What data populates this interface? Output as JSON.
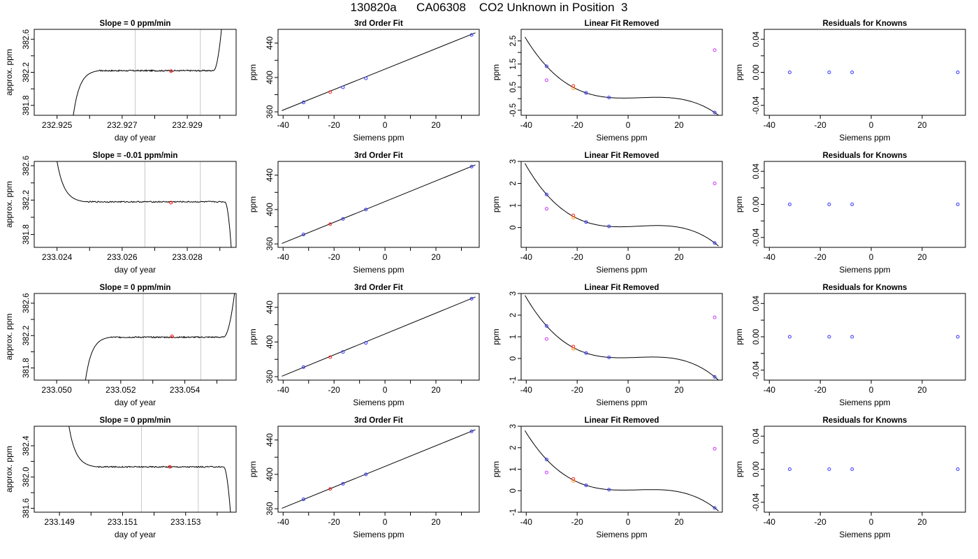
{
  "page": {
    "title": "130820a      CA06308    CO2 Unknown in Position  3"
  },
  "chart_data": [
    {
      "type": "line",
      "title": "Slope =  0  ppm/min",
      "xlabel": "day of year",
      "ylabel": "approx. ppm",
      "xlim": [
        232.9243,
        232.9305
      ],
      "ylim": [
        381.68,
        382.72
      ],
      "xticks": [
        232.925,
        232.926,
        232.927,
        232.928,
        232.929,
        232.93
      ],
      "xtick_labels": [
        "232.925",
        "",
        "232.927",
        "",
        "232.929",
        ""
      ],
      "yticks": [
        381.8,
        382.0,
        382.2,
        382.4,
        382.6
      ],
      "ytick_labels": [
        "381.8",
        "",
        "382.2",
        "",
        "382.6"
      ],
      "vlines": [
        232.9274,
        232.9294
      ],
      "point": [
        232.9285,
        382.215
      ],
      "shape": "rise-flat-rise",
      "trace": {
        "x_start": 232.9255,
        "x_plateau": 232.9263,
        "x_flat_end": 232.9298,
        "x_end": 232.93005,
        "y_low": 381.68,
        "y_plateau": 382.22,
        "y_end": 382.72,
        "noise": 0.008
      }
    },
    {
      "type": "scatter",
      "title": "3rd Order Fit",
      "xlabel": "Siemens ppm",
      "ylabel": "ppm",
      "xlim": [
        -42,
        37
      ],
      "ylim": [
        356,
        456
      ],
      "xticks": [
        -40,
        -30,
        -20,
        -10,
        0,
        10,
        20,
        30
      ],
      "xtick_labels": [
        "-40",
        "",
        "-20",
        "",
        "0",
        "",
        "20",
        ""
      ],
      "yticks": [
        360,
        380,
        400,
        420,
        440
      ],
      "ytick_labels": [
        "360",
        "",
        "400",
        "",
        "440"
      ],
      "line": [
        [
          -40.5,
          361.5
        ],
        [
          35.5,
          452
        ]
      ],
      "blue": {
        "x": [
          -32,
          -16.5,
          -7.5,
          34
        ],
        "y": [
          371,
          388.5,
          399,
          449.5
        ]
      },
      "red": {
        "x": [
          -21.5
        ],
        "y": [
          383
        ]
      }
    },
    {
      "type": "scatter",
      "title": "Linear Fit Removed",
      "xlabel": "Siemens ppm",
      "ylabel": "ppm",
      "xlim": [
        -42,
        37
      ],
      "ylim": [
        -0.72,
        3.0
      ],
      "xticks": [
        -40,
        -20,
        0,
        20
      ],
      "xtick_labels": [
        "-40",
        "-20",
        "0",
        "20"
      ],
      "yticks": [
        -0.5,
        0,
        0.5,
        1,
        1.5,
        2,
        2.5
      ],
      "ytick_labels": [
        "-0.5",
        "",
        "0.5",
        "",
        "1.5",
        "",
        "2.5"
      ],
      "cubic": {
        "a": 0.0,
        "b": -7.2e-05,
        "c": -5.4e-06,
        "d": 5.4e-07
      },
      "blue": {
        "x": [
          -32,
          -16.5,
          -7.5,
          34
        ],
        "y": [
          1.4,
          0.25,
          0.05,
          -0.6
        ]
      },
      "red": {
        "x": [
          -21.5
        ],
        "y": [
          0.55
        ]
      },
      "orange": {
        "x": [
          -21.5
        ],
        "y": [
          0.45
        ]
      },
      "magenta": {
        "x": [
          -32,
          34
        ],
        "y": [
          0.8,
          2.1
        ]
      }
    },
    {
      "type": "scatter",
      "title": "Residuals for Knowns",
      "xlabel": "Siemens ppm",
      "ylabel": "ppm",
      "xlim": [
        -42,
        37
      ],
      "ylim": [
        -0.052,
        0.052
      ],
      "xticks": [
        -40,
        -20,
        0,
        20
      ],
      "xtick_labels": [
        "-40",
        "-20",
        "0",
        "20"
      ],
      "yticks": [
        -0.04,
        -0.02,
        0,
        0.02,
        0.04
      ],
      "ytick_labels": [
        "-0.04",
        "",
        "0.00",
        "",
        "0.04"
      ],
      "blue": {
        "x": [
          -32,
          -16.5,
          -7.5,
          34
        ],
        "y": [
          0,
          0,
          0,
          0
        ]
      }
    },
    {
      "type": "line",
      "title": "Slope =  -0.01  ppm/min",
      "xlabel": "day of year",
      "ylabel": "approx. ppm",
      "xlim": [
        233.0233,
        233.0295
      ],
      "ylim": [
        381.65,
        382.65
      ],
      "xticks": [
        233.024,
        233.025,
        233.026,
        233.027,
        233.028,
        233.029
      ],
      "xtick_labels": [
        "233.024",
        "",
        "233.026",
        "",
        "233.028",
        ""
      ],
      "yticks": [
        381.8,
        382.0,
        382.2,
        382.4,
        382.6
      ],
      "ytick_labels": [
        "381.8",
        "",
        "382.2",
        "",
        "382.6"
      ],
      "vlines": [
        233.0267,
        233.0284
      ],
      "point": [
        233.0275,
        382.17
      ],
      "shape": "fall-flat-fall",
      "trace": {
        "x_start": 233.024,
        "x_plateau": 233.0249,
        "x_flat_end": 233.02915,
        "x_end": 233.02935,
        "y_start": 382.65,
        "y_plateau": 382.18,
        "y_end": 381.65,
        "noise": 0.007
      }
    },
    {
      "type": "scatter",
      "title": "3rd Order Fit",
      "xlabel": "Siemens ppm",
      "ylabel": "ppm",
      "xlim": [
        -42,
        37
      ],
      "ylim": [
        356,
        456
      ],
      "xticks": [
        -40,
        -30,
        -20,
        -10,
        0,
        10,
        20,
        30
      ],
      "xtick_labels": [
        "-40",
        "",
        "-20",
        "",
        "0",
        "",
        "20",
        ""
      ],
      "yticks": [
        360,
        380,
        400,
        420,
        440
      ],
      "ytick_labels": [
        "360",
        "",
        "400",
        "",
        "440"
      ],
      "line": [
        [
          -40.5,
          360.5
        ],
        [
          35.5,
          452
        ]
      ],
      "blue": {
        "x": [
          -32,
          -16.5,
          -7.5,
          34
        ],
        "y": [
          371,
          389,
          400,
          450
        ]
      },
      "red": {
        "x": [
          -21.5
        ],
        "y": [
          383
        ]
      }
    },
    {
      "type": "scatter",
      "title": "Linear Fit Removed",
      "xlabel": "Siemens ppm",
      "ylabel": "ppm",
      "xlim": [
        -42,
        37
      ],
      "ylim": [
        -0.9,
        3.0
      ],
      "xticks": [
        -40,
        -20,
        0,
        20
      ],
      "xtick_labels": [
        "-40",
        "-20",
        "0",
        "20"
      ],
      "yticks": [
        0,
        1,
        2,
        3
      ],
      "ytick_labels": [
        "0",
        "1",
        "2",
        "3"
      ],
      "cubic": {
        "a": 0.0,
        "b": -7.8e-05,
        "c": -5.8e-06,
        "d": 5.8e-07
      },
      "blue": {
        "x": [
          -32,
          -16.5,
          -7.5,
          34
        ],
        "y": [
          1.5,
          0.25,
          0.05,
          -0.7
        ]
      },
      "red": {
        "x": [
          -21.5
        ],
        "y": [
          0.55
        ]
      },
      "orange": {
        "x": [
          -21.5
        ],
        "y": [
          0.45
        ]
      },
      "magenta": {
        "x": [
          -32,
          34
        ],
        "y": [
          0.85,
          2.0
        ]
      }
    },
    {
      "type": "scatter",
      "title": "Residuals for Knowns",
      "xlabel": "Siemens ppm",
      "ylabel": "ppm",
      "xlim": [
        -42,
        37
      ],
      "ylim": [
        -0.052,
        0.052
      ],
      "xticks": [
        -40,
        -20,
        0,
        20
      ],
      "xtick_labels": [
        "-40",
        "-20",
        "0",
        "20"
      ],
      "yticks": [
        -0.04,
        -0.02,
        0,
        0.02,
        0.04
      ],
      "ytick_labels": [
        "-0.04",
        "",
        "0.00",
        "",
        "0.04"
      ],
      "blue": {
        "x": [
          -32,
          -16.5,
          -7.5,
          34
        ],
        "y": [
          0,
          0,
          0,
          0
        ]
      }
    },
    {
      "type": "line",
      "title": "Slope =  0  ppm/min",
      "xlabel": "day of year",
      "ylabel": "approx. ppm",
      "xlim": [
        233.0493,
        233.0556
      ],
      "ylim": [
        381.65,
        382.72
      ],
      "xticks": [
        233.05,
        233.051,
        233.052,
        233.053,
        233.054,
        233.055
      ],
      "xtick_labels": [
        "233.050",
        "",
        "233.052",
        "",
        "233.054",
        ""
      ],
      "yticks": [
        381.8,
        382.0,
        382.2,
        382.4,
        382.6
      ],
      "ytick_labels": [
        "381.8",
        "",
        "382.2",
        "",
        "382.6"
      ],
      "vlines": [
        233.0527,
        233.0545
      ],
      "point": [
        233.0536,
        382.19
      ],
      "shape": "rise-flat-rise",
      "trace": {
        "x_start": 233.0509,
        "x_plateau": 233.0517,
        "x_flat_end": 233.0552,
        "x_end": 233.05555,
        "y_low": 381.65,
        "y_plateau": 382.18,
        "y_end": 382.72,
        "noise": 0.008
      }
    },
    {
      "type": "scatter",
      "title": "3rd Order Fit",
      "xlabel": "Siemens ppm",
      "ylabel": "ppm",
      "xlim": [
        -42,
        37
      ],
      "ylim": [
        356,
        456
      ],
      "xticks": [
        -40,
        -30,
        -20,
        -10,
        0,
        10,
        20,
        30
      ],
      "xtick_labels": [
        "-40",
        "",
        "-20",
        "",
        "0",
        "",
        "20",
        ""
      ],
      "yticks": [
        360,
        380,
        400,
        420,
        440
      ],
      "ytick_labels": [
        "360",
        "",
        "400",
        "",
        "440"
      ],
      "line": [
        [
          -40.5,
          360.5
        ],
        [
          35.5,
          452
        ]
      ],
      "blue": {
        "x": [
          -32,
          -16.5,
          -7.5,
          34
        ],
        "y": [
          371,
          388.5,
          399,
          450
        ]
      },
      "red": {
        "x": [
          -21.5
        ],
        "y": [
          382.5
        ]
      }
    },
    {
      "type": "scatter",
      "title": "Linear Fit Removed",
      "xlabel": "Siemens ppm",
      "ylabel": "ppm",
      "xlim": [
        -42,
        37
      ],
      "ylim": [
        -1.0,
        3.0
      ],
      "xticks": [
        -40,
        -20,
        0,
        20
      ],
      "xtick_labels": [
        "-40",
        "-20",
        "0",
        "20"
      ],
      "yticks": [
        -1,
        0,
        1,
        2,
        3
      ],
      "ytick_labels": [
        "-1",
        "0",
        "1",
        "2",
        "3"
      ],
      "cubic": {
        "a": 0.0,
        "b": -8.5e-05,
        "c": -6.2e-06,
        "d": 6.2e-07
      },
      "blue": {
        "x": [
          -32,
          -16.5,
          -7.5,
          34
        ],
        "y": [
          1.5,
          0.25,
          0.05,
          -0.85
        ]
      },
      "red": {
        "x": [
          -21.5
        ],
        "y": [
          0.55
        ]
      },
      "orange": {
        "x": [
          -21.5
        ],
        "y": [
          0.45
        ]
      },
      "magenta": {
        "x": [
          -32,
          34
        ],
        "y": [
          0.9,
          1.9
        ]
      }
    },
    {
      "type": "scatter",
      "title": "Residuals for Knowns",
      "xlabel": "Siemens ppm",
      "ylabel": "ppm",
      "xlim": [
        -42,
        37
      ],
      "ylim": [
        -0.052,
        0.052
      ],
      "xticks": [
        -40,
        -20,
        0,
        20
      ],
      "xtick_labels": [
        "-40",
        "-20",
        "0",
        "20"
      ],
      "yticks": [
        -0.04,
        -0.02,
        0,
        0.02,
        0.04
      ],
      "ytick_labels": [
        "-0.04",
        "",
        "0.00",
        "",
        "0.04"
      ],
      "blue": {
        "x": [
          -32,
          -16.5,
          -7.5,
          34
        ],
        "y": [
          0,
          0,
          0,
          0
        ]
      }
    },
    {
      "type": "line",
      "title": "Slope =  0  ppm/min",
      "xlabel": "day of year",
      "ylabel": "approx. ppm",
      "xlim": [
        233.1482,
        233.1546
      ],
      "ylim": [
        381.55,
        382.65
      ],
      "xticks": [
        233.149,
        233.15,
        233.151,
        233.152,
        233.153,
        233.154
      ],
      "xtick_labels": [
        "233.149",
        "",
        "233.151",
        "",
        "233.153",
        ""
      ],
      "yticks": [
        381.6,
        381.8,
        382.0,
        382.2,
        382.4
      ],
      "ytick_labels": [
        "381.6",
        "",
        "382.0",
        "",
        "382.4"
      ],
      "vlines": [
        233.1516,
        233.1534
      ],
      "point": [
        233.1525,
        382.13
      ],
      "shape": "fall-flat-fall",
      "trace": {
        "x_start": 233.1493,
        "x_plateau": 233.1502,
        "x_flat_end": 233.1542,
        "x_end": 233.15442,
        "y_start": 382.65,
        "y_plateau": 382.13,
        "y_end": 381.55,
        "noise": 0.008
      }
    },
    {
      "type": "scatter",
      "title": "3rd Order Fit",
      "xlabel": "Siemens ppm",
      "ylabel": "ppm",
      "xlim": [
        -42,
        37
      ],
      "ylim": [
        356,
        456
      ],
      "xticks": [
        -40,
        -30,
        -20,
        -10,
        0,
        10,
        20,
        30
      ],
      "xtick_labels": [
        "-40",
        "",
        "-20",
        "",
        "0",
        "",
        "20",
        ""
      ],
      "yticks": [
        360,
        380,
        400,
        420,
        440
      ],
      "ytick_labels": [
        "360",
        "",
        "400",
        "",
        "440"
      ],
      "line": [
        [
          -40.5,
          360.5
        ],
        [
          35.5,
          452
        ]
      ],
      "blue": {
        "x": [
          -32,
          -16.5,
          -7.5,
          34
        ],
        "y": [
          371,
          389,
          400,
          450
        ]
      },
      "red": {
        "x": [
          -21.5
        ],
        "y": [
          383
        ]
      }
    },
    {
      "type": "scatter",
      "title": "Linear Fit Removed",
      "xlabel": "Siemens ppm",
      "ylabel": "ppm",
      "xlim": [
        -42,
        37
      ],
      "ylim": [
        -1.0,
        3.0
      ],
      "xticks": [
        -40,
        -20,
        0,
        20
      ],
      "xtick_labels": [
        "-40",
        "-20",
        "0",
        "20"
      ],
      "yticks": [
        -1,
        0,
        1,
        2,
        3
      ],
      "ytick_labels": [
        "-1",
        "0",
        "1",
        "2",
        "3"
      ],
      "cubic": {
        "a": 0.0,
        "b": -8e-05,
        "c": -6e-06,
        "d": 6e-07
      },
      "blue": {
        "x": [
          -32,
          -16.5,
          -7.5,
          34
        ],
        "y": [
          1.45,
          0.25,
          0.05,
          -0.8
        ]
      },
      "red": {
        "x": [
          -21.5
        ],
        "y": [
          0.55
        ]
      },
      "orange": {
        "x": [
          -21.5
        ],
        "y": [
          0.45
        ]
      },
      "magenta": {
        "x": [
          -32,
          34
        ],
        "y": [
          0.85,
          1.95
        ]
      }
    },
    {
      "type": "scatter",
      "title": "Residuals for Knowns",
      "xlabel": "Siemens ppm",
      "ylabel": "ppm",
      "xlim": [
        -42,
        37
      ],
      "ylim": [
        -0.052,
        0.052
      ],
      "xticks": [
        -40,
        -20,
        0,
        20
      ],
      "xtick_labels": [
        "-40",
        "-20",
        "0",
        "20"
      ],
      "yticks": [
        -0.04,
        -0.02,
        0,
        0.02,
        0.04
      ],
      "ytick_labels": [
        "-0.04",
        "",
        "0.00",
        "",
        "0.04"
      ],
      "blue": {
        "x": [
          -32,
          -16.5,
          -7.5,
          34
        ],
        "y": [
          0,
          0,
          0,
          0
        ]
      }
    }
  ]
}
